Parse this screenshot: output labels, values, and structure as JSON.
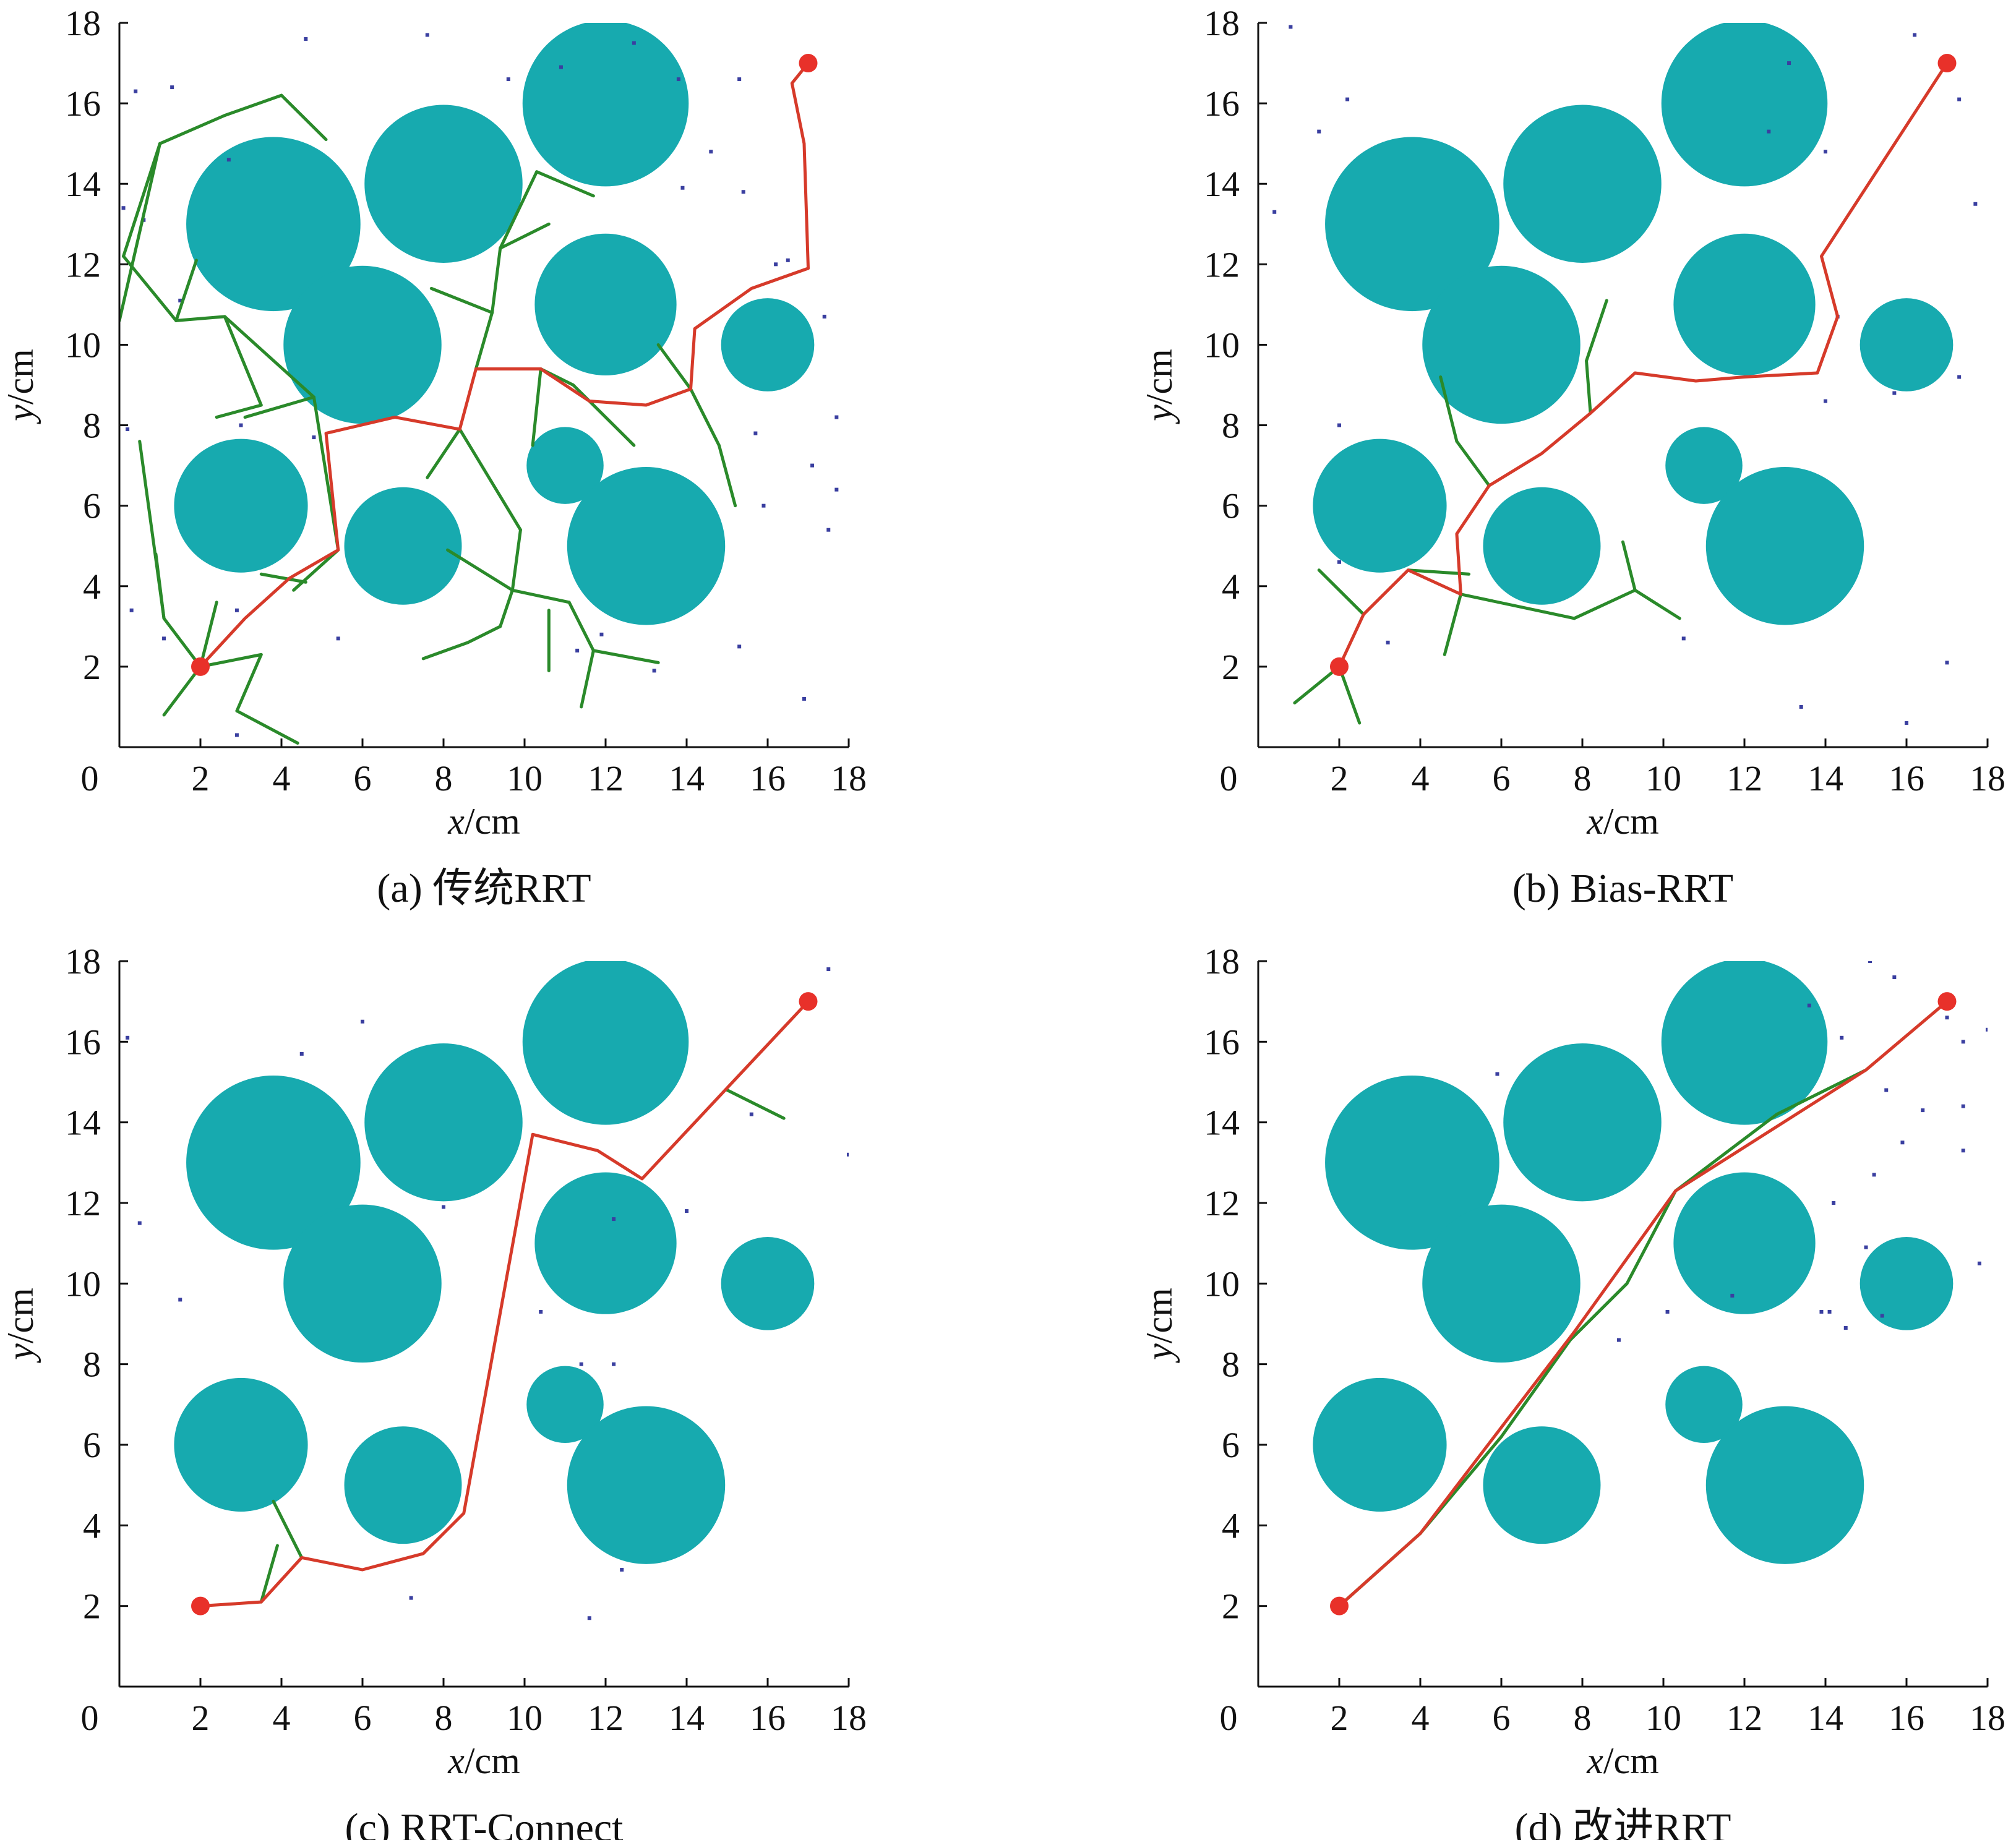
{
  "colors": {
    "obstacle": "#17aaaf",
    "tree": "#2a8a2a",
    "path": "#d63a2a",
    "endpoint": "#e8312a",
    "sample": "#3a3fa0",
    "axis": "#111111"
  },
  "shared": {
    "xlabel_var": "x",
    "xlabel_unit": "/cm",
    "ylabel_var": "y",
    "ylabel_unit": "/cm",
    "xlim": [
      0,
      18
    ],
    "ylim": [
      0,
      18
    ],
    "xticks": [
      "0",
      "2",
      "4",
      "6",
      "8",
      "10",
      "12",
      "14",
      "16",
      "18"
    ],
    "yticks": [
      "2",
      "4",
      "6",
      "8",
      "10",
      "12",
      "14",
      "16",
      "18"
    ],
    "obstacles": [
      {
        "cx": 3.8,
        "cy": 13.0,
        "r": 2.15
      },
      {
        "cx": 8.0,
        "cy": 14.0,
        "r": 1.95
      },
      {
        "cx": 12.0,
        "cy": 16.0,
        "r": 2.05
      },
      {
        "cx": 6.0,
        "cy": 10.0,
        "r": 1.95
      },
      {
        "cx": 12.0,
        "cy": 11.0,
        "r": 1.75
      },
      {
        "cx": 16.0,
        "cy": 10.0,
        "r": 1.15
      },
      {
        "cx": 3.0,
        "cy": 6.0,
        "r": 1.65
      },
      {
        "cx": 7.0,
        "cy": 5.0,
        "r": 1.45
      },
      {
        "cx": 11.0,
        "cy": 7.0,
        "r": 0.95
      },
      {
        "cx": 13.0,
        "cy": 5.0,
        "r": 1.95
      }
    ],
    "start": [
      2,
      2
    ],
    "goal": [
      17,
      17
    ]
  },
  "chart_data": [
    {
      "type": "scatter",
      "caption": "(a)  传统RRT",
      "path": [
        [
          2,
          2
        ],
        [
          3.1,
          3.2
        ],
        [
          4.2,
          4.2
        ],
        [
          5.4,
          4.9
        ],
        [
          5.1,
          7.8
        ],
        [
          6.8,
          8.2
        ],
        [
          8.4,
          7.9
        ],
        [
          8.8,
          9.4
        ],
        [
          10.4,
          9.4
        ],
        [
          11.6,
          8.6
        ],
        [
          13.0,
          8.5
        ],
        [
          14.1,
          8.9
        ],
        [
          14.2,
          10.4
        ],
        [
          15.6,
          11.4
        ],
        [
          17.0,
          11.9
        ],
        [
          16.9,
          15.0
        ],
        [
          16.6,
          16.5
        ],
        [
          17,
          17
        ]
      ],
      "tree": [
        [
          [
            2,
            2
          ],
          [
            1.1,
            0.8
          ]
        ],
        [
          [
            2,
            2
          ],
          [
            2.4,
            3.6
          ]
        ],
        [
          [
            2,
            2
          ],
          [
            3.5,
            2.3
          ]
        ],
        [
          [
            3.5,
            2.3
          ],
          [
            2.9,
            0.9
          ]
        ],
        [
          [
            2.9,
            0.9
          ],
          [
            4.4,
            0.1
          ]
        ],
        [
          [
            2,
            2
          ],
          [
            1.1,
            3.2
          ]
        ],
        [
          [
            1.1,
            3.2
          ],
          [
            0.9,
            4.8
          ]
        ],
        [
          [
            1.1,
            3.2
          ],
          [
            0.5,
            7.6
          ]
        ],
        [
          [
            5.4,
            4.9
          ],
          [
            4.3,
            3.9
          ]
        ],
        [
          [
            5.4,
            4.9
          ],
          [
            4.8,
            8.7
          ]
        ],
        [
          [
            4.8,
            8.7
          ],
          [
            3.1,
            8.2
          ]
        ],
        [
          [
            4.8,
            8.7
          ],
          [
            2.6,
            10.7
          ]
        ],
        [
          [
            2.6,
            10.7
          ],
          [
            1.4,
            10.6
          ]
        ],
        [
          [
            1.4,
            10.6
          ],
          [
            0.1,
            12.2
          ]
        ],
        [
          [
            1.4,
            10.6
          ],
          [
            1.9,
            12.1
          ]
        ],
        [
          [
            0.1,
            12.2
          ],
          [
            1.0,
            15.0
          ]
        ],
        [
          [
            1.0,
            15.0
          ],
          [
            0.0,
            10.6
          ]
        ],
        [
          [
            1.0,
            15.0
          ],
          [
            2.6,
            15.7
          ]
        ],
        [
          [
            2.6,
            15.7
          ],
          [
            4.0,
            16.2
          ]
        ],
        [
          [
            4.0,
            16.2
          ],
          [
            5.1,
            15.1
          ]
        ],
        [
          [
            2.6,
            10.7
          ],
          [
            3.5,
            8.5
          ]
        ],
        [
          [
            3.5,
            8.5
          ],
          [
            2.4,
            8.2
          ]
        ],
        [
          [
            3.5,
            4.3
          ],
          [
            4.6,
            4.1
          ]
        ],
        [
          [
            8.8,
            9.4
          ],
          [
            9.2,
            10.8
          ]
        ],
        [
          [
            9.2,
            10.8
          ],
          [
            7.7,
            11.4
          ]
        ],
        [
          [
            9.2,
            10.8
          ],
          [
            9.4,
            12.4
          ]
        ],
        [
          [
            9.4,
            12.4
          ],
          [
            10.3,
            14.3
          ]
        ],
        [
          [
            10.3,
            14.3
          ],
          [
            11.7,
            13.7
          ]
        ],
        [
          [
            9.4,
            12.4
          ],
          [
            10.6,
            13.0
          ]
        ],
        [
          [
            8.4,
            7.9
          ],
          [
            7.6,
            6.7
          ]
        ],
        [
          [
            8.4,
            7.9
          ],
          [
            9.9,
            5.4
          ]
        ],
        [
          [
            9.9,
            5.4
          ],
          [
            9.7,
            3.9
          ]
        ],
        [
          [
            9.7,
            3.9
          ],
          [
            11.1,
            3.6
          ]
        ],
        [
          [
            9.7,
            3.9
          ],
          [
            9.4,
            3.0
          ]
        ],
        [
          [
            9.4,
            3.0
          ],
          [
            8.6,
            2.6
          ]
        ],
        [
          [
            8.6,
            2.6
          ],
          [
            7.5,
            2.2
          ]
        ],
        [
          [
            9.7,
            3.9
          ],
          [
            8.1,
            4.9
          ]
        ],
        [
          [
            11.1,
            3.6
          ],
          [
            11.7,
            2.4
          ]
        ],
        [
          [
            11.7,
            2.4
          ],
          [
            13.3,
            2.1
          ]
        ],
        [
          [
            11.7,
            2.4
          ],
          [
            11.4,
            1.0
          ]
        ],
        [
          [
            10.6,
            3.4
          ],
          [
            10.6,
            1.9
          ]
        ],
        [
          [
            10.4,
            9.4
          ],
          [
            11.2,
            9.0
          ]
        ],
        [
          [
            11.2,
            9.0
          ],
          [
            12.7,
            7.5
          ]
        ],
        [
          [
            10.4,
            9.4
          ],
          [
            10.2,
            7.5
          ]
        ],
        [
          [
            14.1,
            8.9
          ],
          [
            14.8,
            7.5
          ]
        ],
        [
          [
            14.8,
            7.5
          ],
          [
            15.2,
            6.0
          ]
        ],
        [
          [
            14.1,
            8.9
          ],
          [
            13.3,
            10.0
          ]
        ]
      ],
      "samples": [
        [
          4.6,
          17.6
        ],
        [
          7.6,
          17.7
        ],
        [
          9.6,
          16.6
        ],
        [
          10.9,
          16.9
        ],
        [
          12.7,
          17.5
        ],
        [
          13.8,
          16.6
        ],
        [
          15.3,
          16.6
        ],
        [
          14.6,
          14.8
        ],
        [
          13.9,
          13.9
        ],
        [
          1.3,
          16.4
        ],
        [
          0.4,
          16.3
        ],
        [
          2.7,
          14.6
        ],
        [
          0.1,
          13.4
        ],
        [
          0.6,
          13.1
        ],
        [
          1.5,
          11.1
        ],
        [
          3.0,
          8.0
        ],
        [
          0.2,
          7.9
        ],
        [
          4.8,
          7.7
        ],
        [
          0.3,
          3.4
        ],
        [
          2.9,
          3.4
        ],
        [
          1.1,
          2.7
        ],
        [
          2.9,
          0.3
        ],
        [
          5.4,
          2.7
        ],
        [
          11.3,
          2.4
        ],
        [
          11.9,
          2.8
        ],
        [
          13.2,
          1.9
        ],
        [
          15.3,
          2.5
        ],
        [
          16.9,
          1.2
        ],
        [
          15.9,
          6.0
        ],
        [
          15.7,
          7.8
        ],
        [
          17.5,
          5.4
        ],
        [
          17.1,
          7.0
        ],
        [
          17.7,
          6.4
        ],
        [
          17.4,
          10.7
        ],
        [
          17.7,
          8.2
        ],
        [
          16.5,
          12.1
        ],
        [
          16.2,
          12.0
        ],
        [
          15.4,
          13.8
        ]
      ]
    },
    {
      "type": "scatter",
      "caption": "(b)  Bias-RRT",
      "path": [
        [
          2,
          2
        ],
        [
          2.6,
          3.3
        ],
        [
          3.7,
          4.4
        ],
        [
          5.0,
          3.8
        ],
        [
          4.9,
          5.3
        ],
        [
          5.7,
          6.5
        ],
        [
          7.0,
          7.3
        ],
        [
          8.2,
          8.3
        ],
        [
          9.3,
          9.3
        ],
        [
          10.8,
          9.1
        ],
        [
          12.0,
          9.2
        ],
        [
          13.8,
          9.3
        ],
        [
          14.3,
          10.7
        ],
        [
          13.9,
          12.2
        ],
        [
          17,
          17
        ]
      ],
      "tree": [
        [
          [
            2,
            2
          ],
          [
            0.9,
            1.1
          ]
        ],
        [
          [
            2,
            2
          ],
          [
            2.5,
            0.6
          ]
        ],
        [
          [
            2.6,
            3.3
          ],
          [
            1.5,
            4.4
          ]
        ],
        [
          [
            3.7,
            4.4
          ],
          [
            5.2,
            4.3
          ]
        ],
        [
          [
            5.0,
            3.8
          ],
          [
            4.6,
            2.3
          ]
        ],
        [
          [
            5.0,
            3.8
          ],
          [
            7.8,
            3.2
          ]
        ],
        [
          [
            7.8,
            3.2
          ],
          [
            9.3,
            3.9
          ]
        ],
        [
          [
            9.3,
            3.9
          ],
          [
            10.4,
            3.2
          ]
        ],
        [
          [
            9.3,
            3.9
          ],
          [
            9.0,
            5.1
          ]
        ],
        [
          [
            5.7,
            6.5
          ],
          [
            4.9,
            7.6
          ]
        ],
        [
          [
            4.9,
            7.6
          ],
          [
            4.5,
            9.2
          ]
        ],
        [
          [
            8.2,
            8.3
          ],
          [
            8.1,
            9.6
          ]
        ],
        [
          [
            8.1,
            9.6
          ],
          [
            8.6,
            11.1
          ]
        ]
      ],
      "samples": [
        [
          0.8,
          17.9
        ],
        [
          1.5,
          15.3
        ],
        [
          2.2,
          16.1
        ],
        [
          0.4,
          13.3
        ],
        [
          14.0,
          14.8
        ],
        [
          13.1,
          17.0
        ],
        [
          16.2,
          17.7
        ],
        [
          17.3,
          16.1
        ],
        [
          17.7,
          13.5
        ],
        [
          12.6,
          15.3
        ],
        [
          14.3,
          10.7
        ],
        [
          15.7,
          8.8
        ],
        [
          17.3,
          9.2
        ],
        [
          14.0,
          8.6
        ],
        [
          10.5,
          2.7
        ],
        [
          13.4,
          1.0
        ],
        [
          17.0,
          2.1
        ],
        [
          16.0,
          0.6
        ],
        [
          2.0,
          8.0
        ],
        [
          2.0,
          4.6
        ],
        [
          3.2,
          2.6
        ]
      ]
    },
    {
      "type": "scatter",
      "caption": "(c)  RRT-Connect",
      "path": [
        [
          2,
          2
        ],
        [
          3.5,
          2.1
        ],
        [
          4.5,
          3.2
        ],
        [
          6.0,
          2.9
        ],
        [
          7.5,
          3.3
        ],
        [
          8.5,
          4.3
        ],
        [
          10.2,
          13.7
        ],
        [
          11.8,
          13.3
        ],
        [
          12.9,
          12.6
        ],
        [
          17,
          17
        ]
      ],
      "tree": [
        [
          [
            3.5,
            2.1
          ],
          [
            3.9,
            3.5
          ]
        ],
        [
          [
            4.5,
            3.2
          ],
          [
            3.8,
            4.6
          ]
        ],
        [
          [
            15.0,
            14.8
          ],
          [
            16.4,
            14.1
          ]
        ]
      ],
      "samples": [
        [
          0.2,
          16.1
        ],
        [
          4.5,
          15.7
        ],
        [
          6.0,
          16.5
        ],
        [
          0.5,
          11.5
        ],
        [
          1.5,
          9.6
        ],
        [
          12.2,
          11.6
        ],
        [
          14.0,
          11.8
        ],
        [
          15.6,
          14.2
        ],
        [
          17.5,
          17.8
        ],
        [
          18.0,
          13.2
        ],
        [
          10.4,
          9.3
        ],
        [
          11.4,
          8.0
        ],
        [
          12.2,
          8.0
        ],
        [
          12.4,
          2.9
        ],
        [
          11.6,
          1.7
        ],
        [
          7.2,
          2.2
        ],
        [
          8.0,
          11.9
        ]
      ]
    },
    {
      "type": "scatter",
      "caption": "(d)  改进RRT",
      "path": [
        [
          2,
          2
        ],
        [
          4,
          3.8
        ],
        [
          7.8,
          8.8
        ],
        [
          10.3,
          12.3
        ],
        [
          15.0,
          15.3
        ],
        [
          17,
          17
        ]
      ],
      "tree": [
        [
          [
            2,
            2
          ],
          [
            4,
            3.8
          ]
        ],
        [
          [
            4,
            3.8
          ],
          [
            6.0,
            6.2
          ]
        ],
        [
          [
            6.0,
            6.2
          ],
          [
            7.7,
            8.6
          ]
        ],
        [
          [
            7.7,
            8.6
          ],
          [
            9.1,
            10.0
          ]
        ],
        [
          [
            9.1,
            10.0
          ],
          [
            10.3,
            12.3
          ]
        ],
        [
          [
            10.3,
            12.3
          ],
          [
            12.8,
            14.2
          ]
        ],
        [
          [
            12.8,
            14.2
          ],
          [
            15.0,
            15.3
          ]
        ]
      ],
      "samples": [
        [
          15.1,
          18.0
        ],
        [
          16.9,
          17.0
        ],
        [
          18.0,
          16.3
        ],
        [
          17.0,
          16.6
        ],
        [
          15.5,
          14.8
        ],
        [
          16.4,
          14.3
        ],
        [
          17.4,
          14.4
        ],
        [
          15.9,
          13.5
        ],
        [
          17.4,
          13.3
        ],
        [
          15.2,
          12.7
        ],
        [
          14.2,
          12.0
        ],
        [
          15.0,
          10.9
        ],
        [
          18.1,
          10.6
        ],
        [
          17.8,
          10.5
        ],
        [
          14.1,
          9.3
        ],
        [
          14.5,
          8.9
        ],
        [
          11.7,
          9.7
        ],
        [
          13.9,
          9.3
        ],
        [
          13.6,
          16.9
        ],
        [
          17.4,
          16.0
        ],
        [
          15.4,
          9.2
        ],
        [
          8.9,
          8.6
        ],
        [
          10.1,
          9.3
        ],
        [
          15.7,
          17.6
        ],
        [
          14.4,
          16.1
        ],
        [
          5.9,
          15.2
        ]
      ]
    }
  ]
}
